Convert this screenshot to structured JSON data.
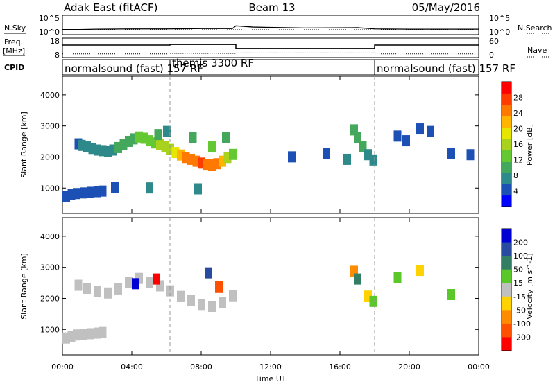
{
  "header": {
    "radar": "Adak East (fitACF)",
    "beam": "Beam 13",
    "date": "05/May/2016"
  },
  "colors": {
    "power": [
      "#0000ff",
      "#1c50b4",
      "#2e8a8a",
      "#44a85c",
      "#64c832",
      "#a8d21e",
      "#e6e600",
      "#ffb400",
      "#ff7800",
      "#ff3c00",
      "#ff0000"
    ],
    "velocity": [
      "#ff0000",
      "#ff5000",
      "#ff8c00",
      "#ffd200",
      "#c8c8c8",
      "#5ac82a",
      "#327d64",
      "#284ba0",
      "#0000d2"
    ],
    "ground_scatter": "#c0c0c0"
  },
  "chart_data": [
    {
      "type": "line",
      "name": "noise-panel",
      "left_label": "N.Sky",
      "right_label": "N.Search",
      "left_ticks": [
        "10^5",
        "10^0"
      ],
      "right_ticks": [
        "10^5",
        "10^0"
      ],
      "series": [
        {
          "legend": "N.Sky",
          "x": [
            0,
            1,
            2,
            4,
            6,
            8,
            9.8,
            10,
            11,
            14,
            17,
            18,
            20,
            24
          ],
          "y": [
            1.0,
            1.0,
            1.1,
            1.2,
            1.2,
            1.3,
            1.3,
            2.2,
            1.8,
            1.5,
            1.6,
            1.2,
            1.1,
            1.1
          ]
        },
        {
          "legend": "N.Search",
          "x": [
            0,
            24
          ],
          "y": [
            0.9,
            0.9
          ]
        }
      ]
    },
    {
      "type": "line",
      "name": "frequency-panel",
      "left_label": "Freq.",
      "left_unit": "[MHz]",
      "right_label": "Nave",
      "left_ticks": [
        "18",
        "8"
      ],
      "right_ticks": [
        "60",
        "0"
      ],
      "series": [
        {
          "legend": "Freq.",
          "x": [
            0,
            6.2,
            6.2,
            10,
            10,
            18,
            18,
            24
          ],
          "y": [
            14.8,
            14.8,
            15.2,
            15.2,
            12.6,
            12.6,
            14.8,
            14.8
          ]
        },
        {
          "legend": "Nave",
          "x": [
            0,
            6.2,
            6.2,
            10,
            10,
            18,
            18,
            24
          ],
          "y": [
            6,
            6,
            8,
            8,
            10,
            10,
            6,
            6
          ]
        }
      ]
    },
    {
      "type": "bar",
      "name": "cpid-panel",
      "left_label": "CPID",
      "segments": [
        {
          "label": "normalsound (fast) 157 RF",
          "start": 0,
          "end": 6.2
        },
        {
          "label": "themis 3300 RF",
          "start": 6.2,
          "end": 18
        },
        {
          "label": "normalsound (fast) 157 RF",
          "start": 18,
          "end": 24
        }
      ]
    },
    {
      "type": "heatmap",
      "name": "power-panel",
      "ylabel": "Slant Range [km]",
      "yticks": [
        1000,
        2000,
        3000,
        4000
      ],
      "ylim": [
        180,
        4600
      ],
      "xlim": [
        0,
        24
      ],
      "colorbar": {
        "label": "Power [dB]",
        "range": [
          0,
          32
        ],
        "ticks": [
          4,
          8,
          12,
          16,
          20,
          24,
          28
        ]
      },
      "cells": [
        [
          0.2,
          700,
          2
        ],
        [
          0.5,
          760,
          3
        ],
        [
          0.8,
          800,
          3
        ],
        [
          1.2,
          820,
          4
        ],
        [
          1.6,
          840,
          3
        ],
        [
          2.0,
          860,
          4
        ],
        [
          2.3,
          880,
          3
        ],
        [
          0.9,
          2400,
          4
        ],
        [
          1.1,
          2350,
          5
        ],
        [
          1.4,
          2300,
          6
        ],
        [
          1.7,
          2250,
          5
        ],
        [
          2.0,
          2200,
          6
        ],
        [
          2.3,
          2180,
          5
        ],
        [
          2.6,
          2150,
          6
        ],
        [
          2.9,
          2200,
          7
        ],
        [
          3.2,
          2280,
          8
        ],
        [
          3.5,
          2380,
          9
        ],
        [
          3.8,
          2480,
          10
        ],
        [
          4.1,
          2560,
          11
        ],
        [
          4.4,
          2620,
          12
        ],
        [
          4.7,
          2580,
          12
        ],
        [
          5.0,
          2500,
          13
        ],
        [
          5.3,
          2430,
          14
        ],
        [
          5.6,
          2380,
          15
        ],
        [
          5.9,
          2300,
          16
        ],
        [
          6.2,
          2220,
          17
        ],
        [
          6.5,
          2120,
          20
        ],
        [
          6.8,
          2040,
          22
        ],
        [
          7.1,
          1960,
          24
        ],
        [
          7.4,
          1900,
          26
        ],
        [
          7.7,
          1840,
          27
        ],
        [
          8.0,
          1780,
          28
        ],
        [
          8.3,
          1740,
          27
        ],
        [
          8.6,
          1720,
          26
        ],
        [
          8.9,
          1760,
          24
        ],
        [
          9.2,
          1840,
          21
        ],
        [
          9.5,
          1960,
          17
        ],
        [
          9.8,
          2060,
          13
        ],
        [
          5.5,
          2700,
          8
        ],
        [
          6.0,
          2800,
          7
        ],
        [
          7.5,
          2600,
          9
        ],
        [
          8.6,
          2300,
          12
        ],
        [
          9.4,
          2600,
          8
        ],
        [
          3.0,
          1000,
          4
        ],
        [
          5.0,
          980,
          5
        ],
        [
          7.8,
          950,
          6
        ],
        [
          13.2,
          1980,
          4
        ],
        [
          15.2,
          2100,
          4
        ],
        [
          16.4,
          1900,
          6
        ],
        [
          16.8,
          2850,
          9
        ],
        [
          17.0,
          2600,
          10
        ],
        [
          17.3,
          2300,
          8
        ],
        [
          17.6,
          2050,
          7
        ],
        [
          17.9,
          1880,
          6
        ],
        [
          19.3,
          2650,
          4
        ],
        [
          19.8,
          2500,
          4
        ],
        [
          20.6,
          2880,
          4
        ],
        [
          21.2,
          2800,
          4
        ],
        [
          22.4,
          2100,
          4
        ],
        [
          23.5,
          2050,
          4
        ]
      ]
    },
    {
      "type": "heatmap",
      "name": "velocity-panel",
      "ylabel": "Slant Range [km]",
      "yticks": [
        1000,
        2000,
        3000,
        4000
      ],
      "ylim": [
        180,
        4600
      ],
      "xlim": [
        0,
        24
      ],
      "xticks": [
        "00:00",
        "04:00",
        "08:00",
        "12:00",
        "16:00",
        "20:00",
        "00:00"
      ],
      "xlabel": "Time UT",
      "colorbar": {
        "label": "Velocity [m s^-1]",
        "range": [
          -250,
          250
        ],
        "ticks": [
          200,
          100,
          50,
          15,
          -15,
          -50,
          -100,
          -200
        ]
      },
      "cells": [
        [
          0.2,
          700,
          0
        ],
        [
          0.5,
          760,
          5
        ],
        [
          0.8,
          800,
          -5
        ],
        [
          1.2,
          820,
          0
        ],
        [
          1.6,
          840,
          5
        ],
        [
          2.0,
          860,
          0
        ],
        [
          2.3,
          880,
          -5
        ],
        [
          0.9,
          2400,
          5
        ],
        [
          1.4,
          2300,
          0
        ],
        [
          2.0,
          2200,
          -5
        ],
        [
          2.6,
          2150,
          0
        ],
        [
          3.2,
          2280,
          5
        ],
        [
          3.8,
          2480,
          0
        ],
        [
          4.4,
          2620,
          -5
        ],
        [
          5.0,
          2500,
          0
        ],
        [
          5.6,
          2380,
          5
        ],
        [
          6.2,
          2220,
          0
        ],
        [
          6.8,
          2040,
          -5
        ],
        [
          7.4,
          1900,
          0
        ],
        [
          8.0,
          1780,
          5
        ],
        [
          8.6,
          1720,
          0
        ],
        [
          9.2,
          1840,
          -5
        ],
        [
          9.8,
          2060,
          0
        ],
        [
          4.2,
          2450,
          220
        ],
        [
          5.4,
          2600,
          -220
        ],
        [
          8.4,
          2800,
          120
        ],
        [
          9.0,
          2350,
          -120
        ],
        [
          16.8,
          2850,
          -60
        ],
        [
          17.0,
          2600,
          60
        ],
        [
          17.6,
          2050,
          -20
        ],
        [
          17.9,
          1880,
          20
        ],
        [
          19.3,
          2650,
          30
        ],
        [
          20.6,
          2880,
          -30
        ],
        [
          22.4,
          2100,
          20
        ]
      ]
    }
  ]
}
